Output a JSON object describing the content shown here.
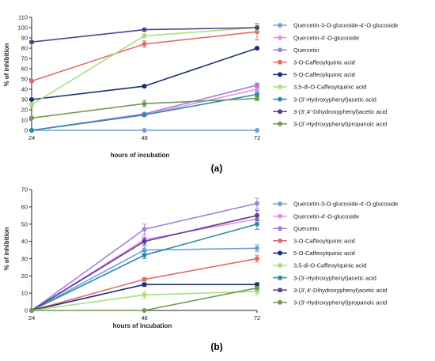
{
  "chart_data": [
    {
      "type": "line",
      "panel_label": "(a)",
      "xlabel": "hours of incubation",
      "ylabel": "% of inhibition",
      "x": [
        24,
        48,
        72
      ],
      "xticks": [
        "24",
        "48",
        "72"
      ],
      "ylim": [
        0,
        110
      ],
      "yticks": [
        "0",
        "10",
        "20",
        "30",
        "40",
        "50",
        "60",
        "70",
        "80",
        "90",
        "100",
        "110"
      ],
      "grid": false,
      "legend_position": "right",
      "series": [
        {
          "name": "Quercetin-3-O-glucoside-4'-O-glucoside",
          "color": "#6fa0dc",
          "values": [
            0,
            0,
            0
          ],
          "errors": [
            0,
            0,
            0
          ]
        },
        {
          "name": "Quercetin-4'-O-glucoside",
          "color": "#e88ee8",
          "values": [
            0,
            15,
            40
          ],
          "errors": [
            0,
            1,
            2
          ]
        },
        {
          "name": "Quercetin",
          "color": "#a37fd6",
          "values": [
            0,
            16,
            44
          ],
          "errors": [
            0,
            1,
            2
          ]
        },
        {
          "name": "3-O-Caffeoylquinic acid",
          "color": "#e06c6c",
          "values": [
            48,
            84,
            96
          ],
          "errors": [
            1,
            3,
            8
          ]
        },
        {
          "name": "5-O-Caffeoylquinic acid",
          "color": "#1a2f7a",
          "values": [
            30,
            43,
            80
          ],
          "errors": [
            1,
            1,
            1
          ]
        },
        {
          "name": "3,5-di-O-Caffeoylquinic acid",
          "color": "#a9e07a",
          "values": [
            25,
            92,
            100
          ],
          "errors": [
            2,
            2,
            3
          ]
        },
        {
          "name": "3-(3'-Hydroxyphenyl)acetic acid",
          "color": "#2e8ca8",
          "values": [
            0,
            15,
            35
          ],
          "errors": [
            0,
            1,
            2
          ]
        },
        {
          "name": "3-(3',4'-Dihydroxyphenyl)acetic acid",
          "color": "#5e3d8f",
          "values": [
            86,
            98,
            100
          ],
          "errors": [
            1,
            1,
            1
          ]
        },
        {
          "name": "3-(3'-Hydroxyphenyl)propanoic acid",
          "color": "#739a55",
          "values": [
            12,
            26,
            31
          ],
          "errors": [
            1,
            3,
            2
          ]
        }
      ]
    },
    {
      "type": "line",
      "panel_label": "(b)",
      "xlabel": "hours of incubation",
      "ylabel": "% of inhibition",
      "x": [
        24,
        48,
        72
      ],
      "xticks": [
        "24",
        "48",
        "72"
      ],
      "ylim": [
        0,
        70
      ],
      "yticks": [
        "0",
        "10",
        "20",
        "30",
        "40",
        "50",
        "60",
        "70"
      ],
      "grid": false,
      "legend_position": "right",
      "series": [
        {
          "name": "Quercetin-3-O-glucoside-4'-O-glucoside",
          "color": "#6fa0dc",
          "values": [
            0,
            35,
            36
          ],
          "errors": [
            0,
            2,
            2
          ]
        },
        {
          "name": "Quercetin-4'-O-glucoside",
          "color": "#e88ee8",
          "values": [
            0,
            41,
            53
          ],
          "errors": [
            0,
            2,
            2
          ]
        },
        {
          "name": "Quercetin",
          "color": "#a37fd6",
          "values": [
            0,
            47,
            62
          ],
          "errors": [
            0,
            3,
            3
          ]
        },
        {
          "name": "3-O-Caffeoylquinic acid",
          "color": "#e06c6c",
          "values": [
            0,
            18,
            30
          ],
          "errors": [
            0,
            1,
            2
          ]
        },
        {
          "name": "5-O-Caffeoylquinic acid",
          "color": "#1a2f7a",
          "values": [
            0,
            15,
            15
          ],
          "errors": [
            0,
            1,
            1
          ]
        },
        {
          "name": "3,5-di-O-Caffeoylquinic acid",
          "color": "#a9e07a",
          "values": [
            0,
            9,
            11
          ],
          "errors": [
            0,
            2,
            2
          ]
        },
        {
          "name": "3-(3'-Hydroxyphenyl)acetic acid",
          "color": "#2e8ca8",
          "values": [
            0,
            32,
            50
          ],
          "errors": [
            0,
            2,
            3
          ]
        },
        {
          "name": "3-(3',4'-Dihydroxyphenyl)acetic acid",
          "color": "#5e3d8f",
          "values": [
            0,
            40,
            55
          ],
          "errors": [
            0,
            2,
            3
          ]
        },
        {
          "name": "3-(3'-Hydroxyphenyl)propanoic acid",
          "color": "#739a55",
          "values": [
            0,
            0,
            13
          ],
          "errors": [
            0,
            0,
            1
          ]
        }
      ]
    }
  ]
}
